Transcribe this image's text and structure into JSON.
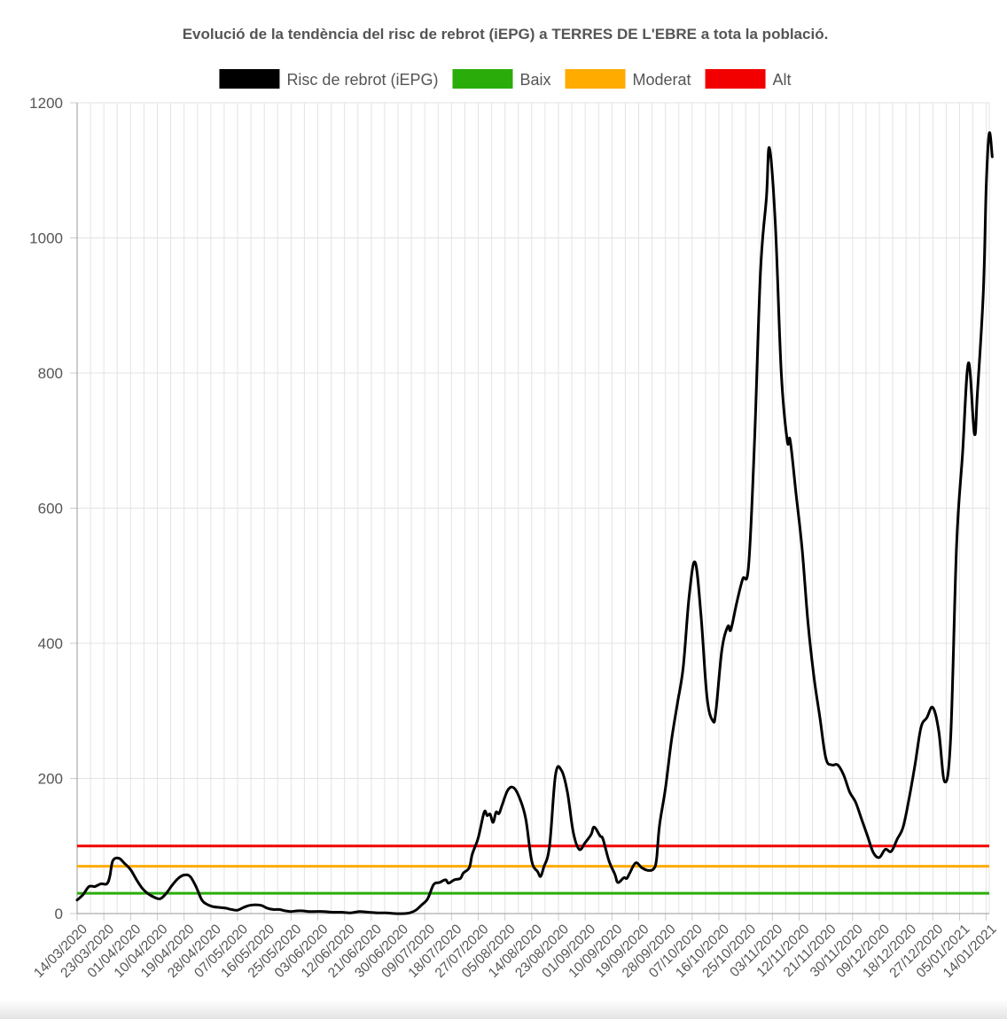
{
  "chart_data": {
    "type": "line",
    "title": "Evolució de la tendència del risc de rebrot (iEPG) a TERRES DE L'EBRE a tota la població.",
    "xlabel": "",
    "ylabel": "",
    "ylim": [
      0,
      1200
    ],
    "y_ticks": [
      "0",
      "200",
      "400",
      "600",
      "800",
      "1000",
      "1200"
    ],
    "x_tick_labels": [
      "14/03/2020",
      "23/03/2020",
      "01/04/2020",
      "10/04/2020",
      "19/04/2020",
      "28/04/2020",
      "07/05/2020",
      "16/05/2020",
      "25/05/2020",
      "03/06/2020",
      "12/06/2020",
      "21/06/2020",
      "30/06/2020",
      "09/07/2020",
      "18/07/2020",
      "27/07/2020",
      "05/08/2020",
      "14/08/2020",
      "23/08/2020",
      "01/09/2020",
      "10/09/2020",
      "19/09/2020",
      "28/09/2020",
      "07/10/2020",
      "16/10/2020",
      "25/10/2020",
      "03/11/2020",
      "12/11/2020",
      "21/11/2020",
      "30/11/2020",
      "09/12/2020",
      "18/12/2020",
      "27/12/2020",
      "05/01/2021",
      "14/01/2021"
    ],
    "grid": true,
    "legend_position": "top",
    "x_start": "14/03/2020",
    "x_end": "15/01/2021",
    "series": [
      {
        "name": "Risc de rebrot (iEPG)",
        "color": "#000000",
        "points": [
          [
            "14/03/2020",
            20
          ],
          [
            "16/03/2020",
            28
          ],
          [
            "18/03/2020",
            40
          ],
          [
            "20/03/2020",
            40
          ],
          [
            "22/03/2020",
            44
          ],
          [
            "24/03/2020",
            44
          ],
          [
            "25/03/2020",
            55
          ],
          [
            "26/03/2020",
            78
          ],
          [
            "28/03/2020",
            82
          ],
          [
            "30/03/2020",
            74
          ],
          [
            "01/04/2020",
            65
          ],
          [
            "03/04/2020",
            50
          ],
          [
            "05/04/2020",
            37
          ],
          [
            "07/04/2020",
            29
          ],
          [
            "09/04/2020",
            24
          ],
          [
            "11/04/2020",
            22
          ],
          [
            "13/04/2020",
            30
          ],
          [
            "15/04/2020",
            42
          ],
          [
            "17/04/2020",
            52
          ],
          [
            "19/04/2020",
            57
          ],
          [
            "21/04/2020",
            55
          ],
          [
            "23/04/2020",
            40
          ],
          [
            "25/04/2020",
            20
          ],
          [
            "27/04/2020",
            13
          ],
          [
            "29/04/2020",
            10
          ],
          [
            "01/05/2020",
            9
          ],
          [
            "03/05/2020",
            8
          ],
          [
            "05/05/2020",
            6
          ],
          [
            "07/05/2020",
            5
          ],
          [
            "09/05/2020",
            9
          ],
          [
            "11/05/2020",
            12
          ],
          [
            "13/05/2020",
            13
          ],
          [
            "15/05/2020",
            12
          ],
          [
            "17/05/2020",
            8
          ],
          [
            "19/05/2020",
            6
          ],
          [
            "21/05/2020",
            6
          ],
          [
            "23/05/2020",
            4
          ],
          [
            "25/05/2020",
            3
          ],
          [
            "27/05/2020",
            4
          ],
          [
            "29/05/2020",
            4
          ],
          [
            "31/05/2020",
            3
          ],
          [
            "02/06/2020",
            3
          ],
          [
            "05/06/2020",
            3
          ],
          [
            "08/06/2020",
            2
          ],
          [
            "11/06/2020",
            2
          ],
          [
            "14/06/2020",
            1
          ],
          [
            "17/06/2020",
            3
          ],
          [
            "20/06/2020",
            2
          ],
          [
            "23/06/2020",
            1
          ],
          [
            "26/06/2020",
            1
          ],
          [
            "29/06/2020",
            0
          ],
          [
            "02/07/2020",
            0
          ],
          [
            "04/07/2020",
            1
          ],
          [
            "06/07/2020",
            5
          ],
          [
            "08/07/2020",
            13
          ],
          [
            "10/07/2020",
            22
          ],
          [
            "12/07/2020",
            43
          ],
          [
            "14/07/2020",
            46
          ],
          [
            "16/07/2020",
            50
          ],
          [
            "17/07/2020",
            45
          ],
          [
            "19/07/2020",
            50
          ],
          [
            "21/07/2020",
            52
          ],
          [
            "22/07/2020",
            60
          ],
          [
            "24/07/2020",
            68
          ],
          [
            "25/07/2020",
            88
          ],
          [
            "27/07/2020",
            112
          ],
          [
            "29/07/2020",
            150
          ],
          [
            "30/07/2020",
            145
          ],
          [
            "31/07/2020",
            147
          ],
          [
            "01/08/2020",
            135
          ],
          [
            "02/08/2020",
            150
          ],
          [
            "03/08/2020",
            148
          ],
          [
            "04/08/2020",
            160
          ],
          [
            "06/08/2020",
            183
          ],
          [
            "08/08/2020",
            186
          ],
          [
            "10/08/2020",
            170
          ],
          [
            "12/08/2020",
            140
          ],
          [
            "14/08/2020",
            78
          ],
          [
            "16/08/2020",
            62
          ],
          [
            "17/08/2020",
            55
          ],
          [
            "18/08/2020",
            68
          ],
          [
            "20/08/2020",
            100
          ],
          [
            "22/08/2020",
            205
          ],
          [
            "24/08/2020",
            212
          ],
          [
            "26/08/2020",
            180
          ],
          [
            "28/08/2020",
            120
          ],
          [
            "30/08/2020",
            95
          ],
          [
            "01/09/2020",
            105
          ],
          [
            "03/09/2020",
            117
          ],
          [
            "04/09/2020",
            128
          ],
          [
            "06/09/2020",
            115
          ],
          [
            "07/09/2020",
            110
          ],
          [
            "09/09/2020",
            78
          ],
          [
            "11/09/2020",
            58
          ],
          [
            "12/09/2020",
            46
          ],
          [
            "14/09/2020",
            53
          ],
          [
            "15/09/2020",
            52
          ],
          [
            "16/09/2020",
            60
          ],
          [
            "18/09/2020",
            75
          ],
          [
            "20/09/2020",
            68
          ],
          [
            "22/09/2020",
            64
          ],
          [
            "24/09/2020",
            66
          ],
          [
            "25/09/2020",
            80
          ],
          [
            "26/09/2020",
            130
          ],
          [
            "28/09/2020",
            185
          ],
          [
            "30/09/2020",
            255
          ],
          [
            "02/10/2020",
            310
          ],
          [
            "04/10/2020",
            365
          ],
          [
            "06/10/2020",
            470
          ],
          [
            "08/10/2020",
            520
          ],
          [
            "10/10/2020",
            440
          ],
          [
            "12/10/2020",
            320
          ],
          [
            "14/10/2020",
            285
          ],
          [
            "15/10/2020",
            300
          ],
          [
            "17/10/2020",
            390
          ],
          [
            "19/10/2020",
            425
          ],
          [
            "20/10/2020",
            420
          ],
          [
            "22/10/2020",
            460
          ],
          [
            "24/10/2020",
            495
          ],
          [
            "26/10/2020",
            515
          ],
          [
            "28/10/2020",
            700
          ],
          [
            "30/10/2020",
            950
          ],
          [
            "01/11/2020",
            1060
          ],
          [
            "02/11/2020",
            1133
          ],
          [
            "04/11/2020",
            1020
          ],
          [
            "06/11/2020",
            800
          ],
          [
            "08/11/2020",
            700
          ],
          [
            "09/11/2020",
            700
          ],
          [
            "11/11/2020",
            620
          ],
          [
            "13/11/2020",
            540
          ],
          [
            "15/11/2020",
            430
          ],
          [
            "17/11/2020",
            350
          ],
          [
            "19/11/2020",
            290
          ],
          [
            "21/11/2020",
            230
          ],
          [
            "23/11/2020",
            220
          ],
          [
            "25/11/2020",
            220
          ],
          [
            "27/11/2020",
            205
          ],
          [
            "29/11/2020",
            180
          ],
          [
            "01/12/2020",
            165
          ],
          [
            "03/12/2020",
            140
          ],
          [
            "05/12/2020",
            115
          ],
          [
            "07/12/2020",
            90
          ],
          [
            "09/12/2020",
            83
          ],
          [
            "11/12/2020",
            95
          ],
          [
            "13/12/2020",
            92
          ],
          [
            "15/12/2020",
            110
          ],
          [
            "17/12/2020",
            128
          ],
          [
            "19/12/2020",
            170
          ],
          [
            "21/12/2020",
            220
          ],
          [
            "23/12/2020",
            275
          ],
          [
            "25/12/2020",
            290
          ],
          [
            "27/12/2020",
            305
          ],
          [
            "29/12/2020",
            270
          ],
          [
            "31/12/2020",
            195
          ],
          [
            "02/01/2021",
            260
          ],
          [
            "04/01/2021",
            545
          ],
          [
            "06/01/2021",
            680
          ],
          [
            "08/01/2021",
            815
          ],
          [
            "10/01/2021",
            710
          ],
          [
            "11/01/2021",
            770
          ],
          [
            "13/01/2021",
            920
          ],
          [
            "14/01/2021",
            1080
          ],
          [
            "15/01/2021",
            1155
          ],
          [
            "16/01/2021",
            1120
          ]
        ]
      },
      {
        "name": "Baix",
        "color": "#2aad0a",
        "constant": 30
      },
      {
        "name": "Moderat",
        "color": "#ffab00",
        "constant": 70
      },
      {
        "name": "Alt",
        "color": "#f20000",
        "constant": 100
      }
    ]
  }
}
